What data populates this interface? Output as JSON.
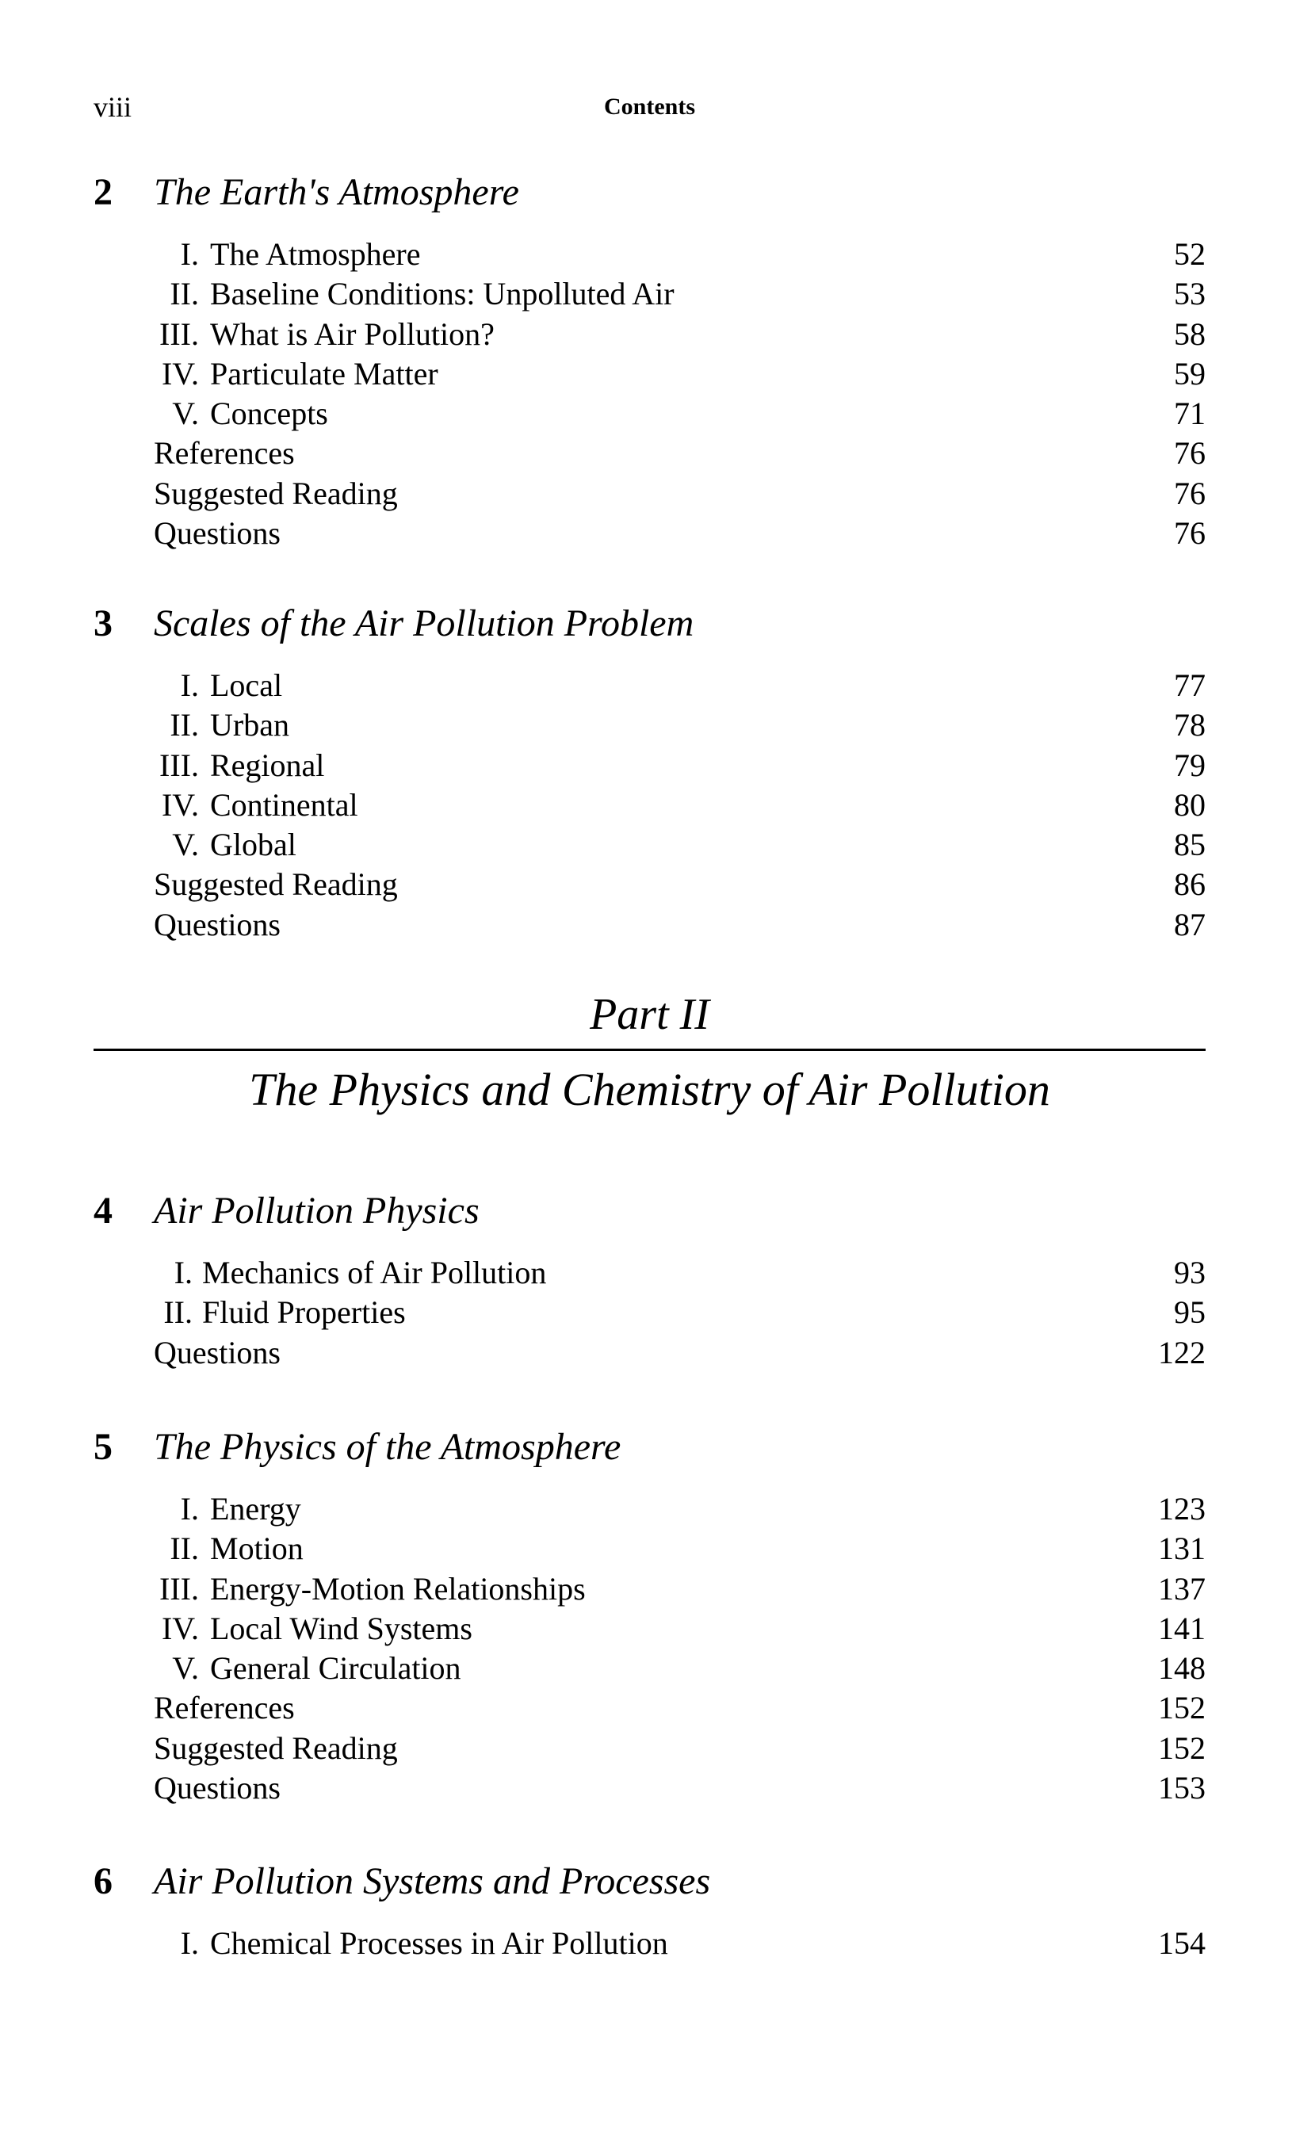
{
  "header": {
    "folio": "viii",
    "running_title": "Contents"
  },
  "part": {
    "label": "Part II",
    "title": "The Physics and Chemistry of Air Pollution"
  },
  "chapters": [
    {
      "number": "2",
      "title": "The Earth's Atmosphere",
      "entries": [
        {
          "numeral": "I.",
          "label": "The Atmosphere",
          "page": "52"
        },
        {
          "numeral": "II.",
          "label": "Baseline Conditions: Unpolluted Air",
          "page": "53"
        },
        {
          "numeral": "III.",
          "label": "What is Air Pollution?",
          "page": "58"
        },
        {
          "numeral": "IV.",
          "label": "Particulate Matter",
          "page": "59"
        },
        {
          "numeral": "V.",
          "label": "Concepts",
          "page": "71"
        },
        {
          "numeral": "",
          "label": "References",
          "page": "76"
        },
        {
          "numeral": "",
          "label": "Suggested Reading",
          "page": "76"
        },
        {
          "numeral": "",
          "label": "Questions",
          "page": "76"
        }
      ]
    },
    {
      "number": "3",
      "title": "Scales of the Air Pollution Problem",
      "entries": [
        {
          "numeral": "I.",
          "label": "Local",
          "page": "77"
        },
        {
          "numeral": "II.",
          "label": "Urban",
          "page": "78"
        },
        {
          "numeral": "III.",
          "label": "Regional",
          "page": "79"
        },
        {
          "numeral": "IV.",
          "label": "Continental",
          "page": "80"
        },
        {
          "numeral": "V.",
          "label": "Global",
          "page": "85"
        },
        {
          "numeral": "",
          "label": "Suggested Reading",
          "page": "86"
        },
        {
          "numeral": "",
          "label": "Questions",
          "page": "87"
        }
      ]
    },
    {
      "number": "4",
      "title": "Air Pollution Physics",
      "entries": [
        {
          "numeral": "I.",
          "label": "Mechanics of Air Pollution",
          "page": "93"
        },
        {
          "numeral": "II.",
          "label": "Fluid Properties",
          "page": "95"
        },
        {
          "numeral": "",
          "label": "Questions",
          "page": "122"
        }
      ]
    },
    {
      "number": "5",
      "title": "The Physics of the Atmosphere",
      "entries": [
        {
          "numeral": "I.",
          "label": "Energy",
          "page": "123"
        },
        {
          "numeral": "II.",
          "label": "Motion",
          "page": "131"
        },
        {
          "numeral": "III.",
          "label": "Energy-Motion Relationships",
          "page": "137"
        },
        {
          "numeral": "IV.",
          "label": "Local Wind Systems",
          "page": "141"
        },
        {
          "numeral": "V.",
          "label": "General Circulation",
          "page": "148"
        },
        {
          "numeral": "",
          "label": "References",
          "page": "152"
        },
        {
          "numeral": "",
          "label": "Suggested Reading",
          "page": "152"
        },
        {
          "numeral": "",
          "label": "Questions",
          "page": "153"
        }
      ]
    },
    {
      "number": "6",
      "title": "Air Pollution Systems and Processes",
      "entries": [
        {
          "numeral": "I.",
          "label": "Chemical Processes in Air Pollution",
          "page": "154"
        }
      ]
    }
  ]
}
